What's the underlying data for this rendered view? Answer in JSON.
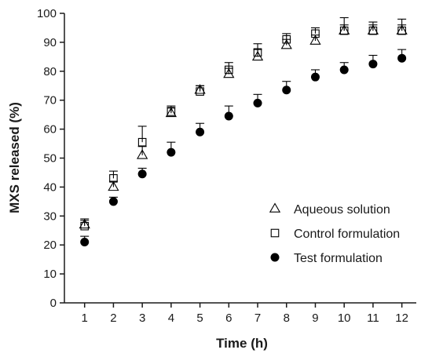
{
  "chart_data": {
    "type": "scatter",
    "xlabel": "Time (h)",
    "ylabel": "MXS released (%)",
    "xlim": [
      0.3,
      12.5
    ],
    "ylim": [
      0,
      100
    ],
    "x": [
      1,
      2,
      3,
      4,
      5,
      6,
      7,
      8,
      9,
      10,
      11,
      12
    ],
    "x_ticks": [
      "1",
      "2",
      "3",
      "4",
      "5",
      "6",
      "7",
      "8",
      "9",
      "10",
      "11",
      "12"
    ],
    "y_ticks": [
      "0",
      "10",
      "20",
      "30",
      "40",
      "50",
      "60",
      "70",
      "80",
      "90",
      "100"
    ],
    "grid": false,
    "legend_position": "bottom-right",
    "series": [
      {
        "name": "Aqueous solution",
        "marker": "triangle-open",
        "values": [
          27,
          40,
          51,
          65.5,
          73.5,
          79,
          85,
          89,
          90.5,
          94,
          94,
          94
        ],
        "errors": [
          2,
          2,
          3,
          2,
          1.5,
          2,
          2.5,
          2,
          2,
          2,
          2,
          2
        ]
      },
      {
        "name": "Control formulation",
        "marker": "square-open",
        "values": [
          26.5,
          43,
          55.5,
          66,
          73,
          80.5,
          86.5,
          91,
          93,
          94,
          94,
          94
        ],
        "errors": [
          2,
          2.5,
          5.5,
          2,
          2,
          2.5,
          3,
          2,
          2,
          4.5,
          3,
          4
        ]
      },
      {
        "name": "Test formulation",
        "marker": "circle-filled",
        "values": [
          21,
          35,
          44.5,
          52,
          59,
          64.5,
          69,
          73.5,
          78,
          80.5,
          82.5,
          84.5
        ],
        "errors": [
          2,
          1.5,
          2,
          3.5,
          3,
          3.5,
          3,
          3,
          2.5,
          2.5,
          3,
          3
        ]
      }
    ]
  },
  "colors": {
    "ink": "#000000",
    "axis": "#1a1a1a",
    "background": "#ffffff"
  }
}
